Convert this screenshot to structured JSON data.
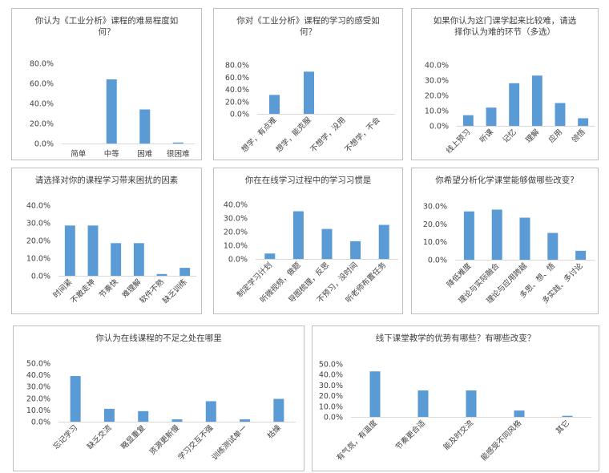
{
  "chart_data": [
    {
      "type": "bar",
      "title": "你认为《工业分析》课程的难易程度如何？",
      "categories": [
        "简单",
        "中等",
        "困难",
        "很困难"
      ],
      "values": [
        0.0,
        64.0,
        34.0,
        1.0
      ],
      "ylim": [
        0,
        80
      ],
      "yticks": [
        "0.0%",
        "20.0%",
        "40.0%",
        "60.0%",
        "80.0%"
      ],
      "xlabel_rotated": false,
      "color": "#5b9bd5"
    },
    {
      "type": "bar",
      "title": "你对《工业分析》课程的学习的感受如何？",
      "categories": [
        "想学，有点难",
        "想学，能克服",
        "不想学，没用",
        "不想学，不会"
      ],
      "values": [
        31.0,
        69.0,
        0.0,
        0.0
      ],
      "ylim": [
        0,
        80
      ],
      "yticks": [
        "0.0%",
        "20.0%",
        "40.0%",
        "60.0%",
        "80.0%"
      ],
      "xlabel_rotated": true,
      "color": "#5b9bd5"
    },
    {
      "type": "bar",
      "title": "如果你认为这门课学起来比较难，请选择你认为难的环节（多选）",
      "categories": [
        "线上预习",
        "听课",
        "记忆",
        "理解",
        "应用",
        "领悟"
      ],
      "values": [
        7.0,
        12.0,
        28.0,
        33.0,
        15.0,
        5.0
      ],
      "ylim": [
        0,
        40
      ],
      "yticks": [
        "0.0%",
        "10.0%",
        "20.0%",
        "30.0%",
        "40.0%"
      ],
      "xlabel_rotated": true,
      "color": "#5b9bd5"
    },
    {
      "type": "bar",
      "title": "请选择对你的课程学习带来困扰的因素",
      "categories": [
        "时间紧",
        "不敢走神",
        "节奏快",
        "难理解",
        "软件不熟",
        "缺乏训练"
      ],
      "values": [
        28.5,
        28.5,
        18.5,
        18.5,
        1.0,
        4.5
      ],
      "ylim": [
        0,
        40
      ],
      "yticks": [
        "0.0%",
        "10.0%",
        "20.0%",
        "30.0%",
        "40.0%"
      ],
      "xlabel_rotated": true,
      "color": "#5b9bd5"
    },
    {
      "type": "bar",
      "title": "你在在线学习过程中的学习习惯是",
      "categories": [
        "制定学习计划",
        "听微视频，做题",
        "导图梳理，反思",
        "不预习，没时间",
        "听老师布置任务"
      ],
      "values": [
        4.0,
        35.0,
        22.0,
        13.0,
        25.0
      ],
      "ylim": [
        0,
        40
      ],
      "yticks": [
        "0.0%",
        "10.0%",
        "20.0%",
        "30.0%",
        "40.0%"
      ],
      "xlabel_rotated": true,
      "color": "#5b9bd5"
    },
    {
      "type": "bar",
      "title": "你希望分析化学课堂能够做哪些改变?",
      "categories": [
        "降低难度",
        "理论与实际融合",
        "理论与应用跨越",
        "多思、想、悟",
        "多实践、多讨论"
      ],
      "values": [
        27.0,
        28.0,
        23.5,
        15.0,
        5.0
      ],
      "ylim": [
        0,
        30
      ],
      "yticks": [
        "0.0%",
        "10.0%",
        "20.0%",
        "30.0%"
      ],
      "xlabel_rotated": true,
      "color": "#5b9bd5"
    },
    {
      "type": "bar",
      "title": "你认为在线课程的不足之处在哪里",
      "categories": [
        "忘记学习",
        "缺乏交流",
        "略显重复",
        "资源更新慢",
        "学习交互不强",
        "训练测试单一",
        "枯燥"
      ],
      "values": [
        39.0,
        11.0,
        9.0,
        2.0,
        17.5,
        2.0,
        19.5
      ],
      "ylim": [
        0,
        50
      ],
      "yticks": [
        "0.0%",
        "10.0%",
        "20.0%",
        "30.0%",
        "40.0%",
        "50.0%"
      ],
      "xlabel_rotated": true,
      "color": "#5b9bd5"
    },
    {
      "type": "bar",
      "title": "线下课堂教学的优势有哪些？有哪些改变？",
      "categories": [
        "有气氛，有温度",
        "节奏更合适",
        "能及时交流",
        "能感受不同风格",
        "其它"
      ],
      "values": [
        43.0,
        25.0,
        25.0,
        6.0,
        1.0
      ],
      "ylim": [
        0,
        50
      ],
      "yticks": [
        "0.0%",
        "10.0%",
        "20.0%",
        "30.0%",
        "40.0%",
        "50.0%"
      ],
      "xlabel_rotated": true,
      "color": "#5b9bd5"
    }
  ]
}
